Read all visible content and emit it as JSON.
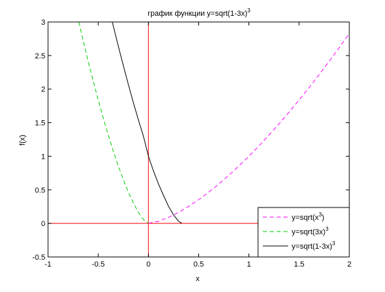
{
  "chart_data": {
    "type": "line",
    "title": "график функции y=sqrt(1-3x)",
    "title_superscript": "3",
    "xlabel": "x",
    "ylabel": "f(x)",
    "xlim": [
      -1,
      2
    ],
    "ylim": [
      -0.5,
      3
    ],
    "x_ticks": [
      -1,
      -0.5,
      0,
      0.5,
      1,
      1.5,
      2
    ],
    "x_tick_labels": [
      "-1",
      "-0.5",
      "0",
      "0.5",
      "1",
      "1.5",
      "2"
    ],
    "y_ticks": [
      -0.5,
      0,
      0.5,
      1,
      1.5,
      2,
      2.5,
      3
    ],
    "y_tick_labels": [
      "-0.5",
      "0",
      "0.5",
      "1",
      "1.5",
      "2",
      "2.5",
      "3"
    ],
    "grid": false,
    "legend_position": "bottom-right",
    "series": [
      {
        "name": "y=sqrt(x",
        "name_superscript": "3",
        "name_suffix": ")",
        "color": "#ff00ff",
        "style": "dashed",
        "x": [
          0,
          0.1,
          0.2,
          0.3,
          0.4,
          0.5,
          0.6,
          0.7,
          0.8,
          0.9,
          1.0,
          1.1,
          1.2,
          1.3,
          1.4,
          1.5,
          1.6,
          1.7,
          1.8,
          1.9,
          2.0
        ],
        "y": [
          0,
          0.032,
          0.089,
          0.164,
          0.253,
          0.354,
          0.465,
          0.586,
          0.716,
          0.854,
          1.0,
          1.154,
          1.315,
          1.482,
          1.657,
          1.837,
          2.024,
          2.217,
          2.415,
          2.619,
          2.828
        ]
      },
      {
        "name": "y=sqrt(3x)",
        "name_superscript": "3",
        "name_suffix": "",
        "color": "#00cc00",
        "style": "dashed",
        "x": [
          -0.693,
          -0.65,
          -0.6,
          -0.55,
          -0.5,
          -0.45,
          -0.4,
          -0.35,
          -0.3,
          -0.25,
          -0.2,
          -0.15,
          -0.1,
          -0.05,
          0
        ],
        "y": [
          3.0,
          2.724,
          2.414,
          2.118,
          1.837,
          1.568,
          1.315,
          1.076,
          0.854,
          0.65,
          0.465,
          0.302,
          0.164,
          0.058,
          0
        ]
      },
      {
        "name": "y=sqrt(1-3x)",
        "name_superscript": "3",
        "name_suffix": "",
        "color": "#000000",
        "style": "solid",
        "x": [
          -0.36,
          -0.3,
          -0.25,
          -0.2,
          -0.15,
          -0.1,
          -0.05,
          0,
          0.05,
          0.1,
          0.15,
          0.2,
          0.25,
          0.3,
          0.3333
        ],
        "y": [
          2.997,
          2.639,
          2.347,
          2.066,
          1.797,
          1.541,
          1.298,
          1.0,
          0.778,
          0.586,
          0.416,
          0.253,
          0.125,
          0.032,
          0
        ]
      }
    ],
    "reference_lines": {
      "color": "#ff0000",
      "x": 0,
      "y": 0
    }
  }
}
